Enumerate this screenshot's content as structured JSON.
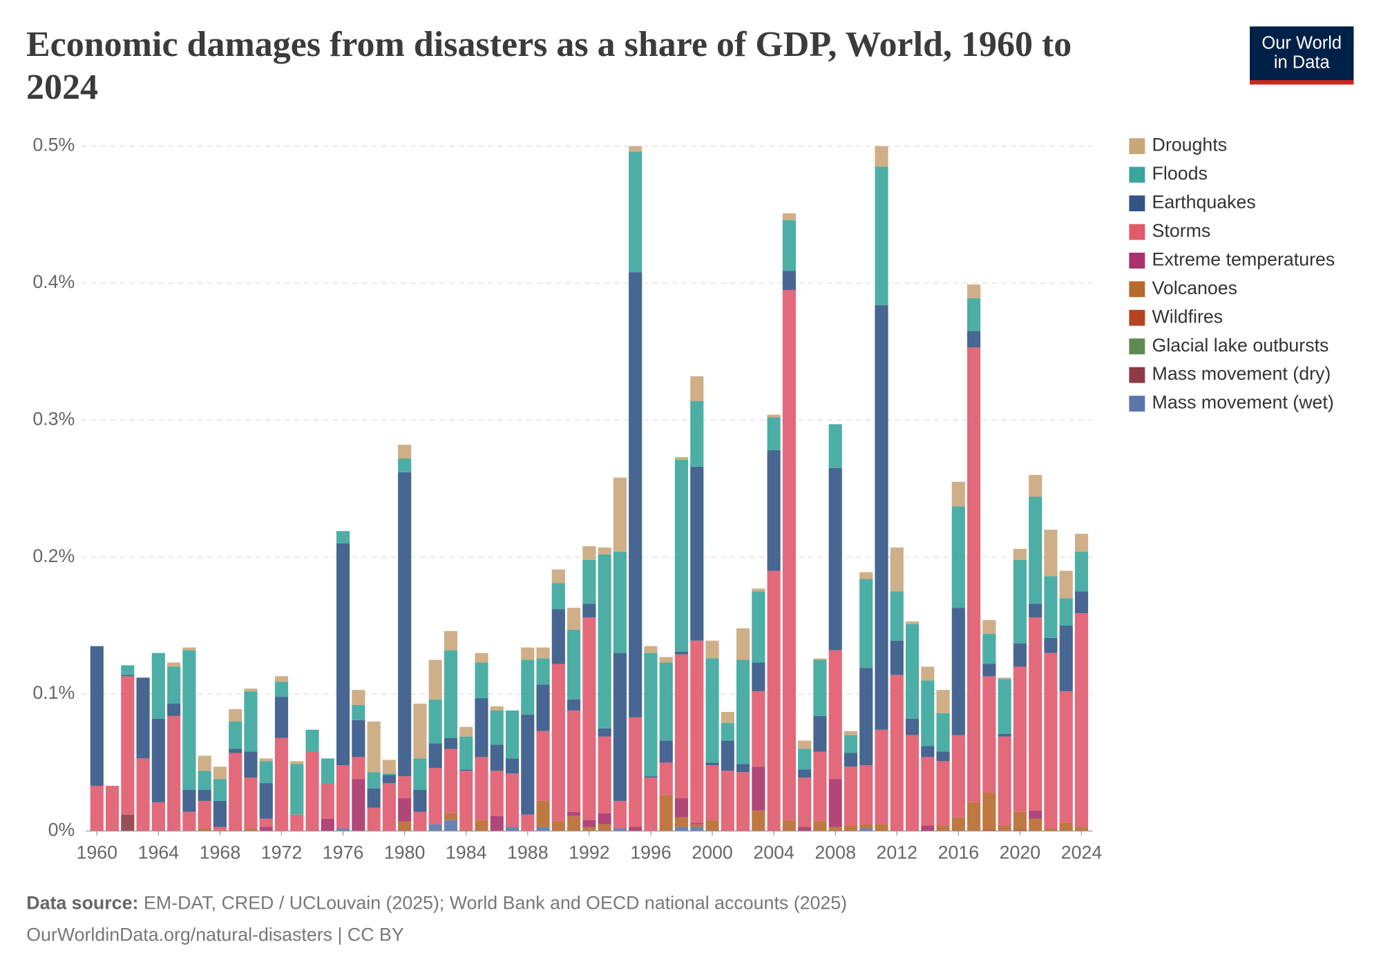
{
  "chart_data": {
    "type": "bar",
    "stacked": true,
    "title": "Economic damages from disasters as a share of GDP, World, 1960 to 2024",
    "x": [
      1960,
      1961,
      1962,
      1963,
      1964,
      1965,
      1966,
      1967,
      1968,
      1969,
      1970,
      1971,
      1972,
      1973,
      1974,
      1975,
      1976,
      1977,
      1978,
      1979,
      1980,
      1981,
      1982,
      1983,
      1984,
      1985,
      1986,
      1987,
      1988,
      1989,
      1990,
      1991,
      1992,
      1993,
      1994,
      1995,
      1996,
      1997,
      1998,
      1999,
      2000,
      2001,
      2002,
      2003,
      2004,
      2005,
      2006,
      2007,
      2008,
      2009,
      2010,
      2011,
      2012,
      2013,
      2014,
      2015,
      2016,
      2017,
      2018,
      2019,
      2020,
      2021,
      2022,
      2023,
      2024
    ],
    "xlim": [
      1959.5,
      2024.5
    ],
    "xticks": [
      1960,
      1964,
      1968,
      1972,
      1976,
      1980,
      1984,
      1988,
      1992,
      1996,
      2000,
      2004,
      2008,
      2012,
      2016,
      2020,
      2024
    ],
    "ylim": [
      0,
      0.5
    ],
    "yticks": [
      {
        "value": 0,
        "label": "0%"
      },
      {
        "value": 0.1,
        "label": "0.1%"
      },
      {
        "value": 0.2,
        "label": "0.2%"
      },
      {
        "value": 0.3,
        "label": "0.3%"
      },
      {
        "value": 0.4,
        "label": "0.4%"
      },
      {
        "value": 0.5,
        "label": "0.5%"
      }
    ],
    "grid": true,
    "legend": "right",
    "series": [
      {
        "name": "Droughts",
        "color": "#c9a67a",
        "values": [
          0,
          0,
          0,
          0,
          0,
          0.003,
          0.002,
          0.011,
          0.009,
          0.009,
          0.002,
          0.002,
          0.004,
          0.002,
          0,
          0,
          0,
          0.011,
          0.037,
          0.01,
          0.01,
          0.04,
          0.029,
          0.014,
          0.007,
          0.007,
          0.003,
          0,
          0.009,
          0.008,
          0.01,
          0.016,
          0.01,
          0.005,
          0.054,
          0.004,
          0.005,
          0.004,
          0.002,
          0.018,
          0.013,
          0.008,
          0.023,
          0.002,
          0.002,
          0.005,
          0.006,
          0.001,
          0,
          0.003,
          0.005,
          0.015,
          0.032,
          0.002,
          0.01,
          0.017,
          0.018,
          0.01,
          0.01,
          0.001,
          0.008,
          0.016,
          0.034,
          0.02,
          0.013
        ]
      },
      {
        "name": "Floods",
        "color": "#3aa59c",
        "values": [
          0,
          0,
          0.007,
          0,
          0.048,
          0.027,
          0.102,
          0.014,
          0.016,
          0.02,
          0.044,
          0.016,
          0.011,
          0.037,
          0.016,
          0.018,
          0.009,
          0.011,
          0.012,
          0.001,
          0.01,
          0.023,
          0.032,
          0.064,
          0.024,
          0.026,
          0.025,
          0.035,
          0.04,
          0.019,
          0.019,
          0.051,
          0.032,
          0.127,
          0.074,
          0.088,
          0.09,
          0.057,
          0.14,
          0.048,
          0.076,
          0.013,
          0.076,
          0.052,
          0.024,
          0.037,
          0.015,
          0.041,
          0.032,
          0.013,
          0.065,
          0.101,
          0.036,
          0.069,
          0.048,
          0.028,
          0.074,
          0.024,
          0.022,
          0.04,
          0.061,
          0.078,
          0.045,
          0.02,
          0.029
        ]
      },
      {
        "name": "Earthquakes",
        "color": "#335585",
        "values": [
          0.102,
          0,
          0.001,
          0.059,
          0.061,
          0.009,
          0.016,
          0.008,
          0.019,
          0.003,
          0.019,
          0.026,
          0.03,
          0,
          0,
          0,
          0.162,
          0.027,
          0.014,
          0.006,
          0.222,
          0.016,
          0.018,
          0.008,
          0.001,
          0.043,
          0.019,
          0.011,
          0.073,
          0.034,
          0.04,
          0.008,
          0.01,
          0.006,
          0.108,
          0.325,
          0.001,
          0.016,
          0.002,
          0.127,
          0.002,
          0.022,
          0.006,
          0.021,
          0.088,
          0.014,
          0.006,
          0.026,
          0.133,
          0.01,
          0.071,
          0.31,
          0.025,
          0.012,
          0.008,
          0.007,
          0.093,
          0.012,
          0.009,
          0.002,
          0.017,
          0.01,
          0.011,
          0.048,
          0.016
        ]
      },
      {
        "name": "Storms",
        "color": "#e05a6b",
        "values": [
          0.033,
          0.033,
          0.101,
          0.053,
          0.021,
          0.084,
          0.014,
          0.02,
          0.003,
          0.057,
          0.037,
          0.006,
          0.068,
          0.012,
          0.058,
          0.026,
          0.046,
          0.016,
          0.017,
          0.035,
          0.016,
          0.014,
          0.041,
          0.047,
          0.043,
          0.046,
          0.033,
          0.039,
          0.012,
          0.051,
          0.115,
          0.074,
          0.148,
          0.056,
          0.02,
          0.08,
          0.039,
          0.024,
          0.105,
          0.133,
          0.04,
          0.044,
          0.043,
          0.055,
          0.19,
          0.387,
          0.036,
          0.051,
          0.094,
          0.043,
          0.043,
          0.069,
          0.114,
          0.07,
          0.05,
          0.047,
          0.06,
          0.332,
          0.085,
          0.065,
          0.106,
          0.141,
          0.128,
          0.096,
          0.156
        ]
      },
      {
        "name": "Extreme temperatures",
        "color": "#a83269",
        "values": [
          0,
          0,
          0,
          0,
          0,
          0,
          0,
          0,
          0,
          0,
          0,
          0.003,
          0,
          0,
          0,
          0.009,
          0,
          0.038,
          0,
          0,
          0.017,
          0,
          0,
          0,
          0,
          0,
          0.011,
          0,
          0,
          0,
          0,
          0.003,
          0.005,
          0.008,
          0,
          0.003,
          0,
          0,
          0.014,
          0.001,
          0,
          0,
          0,
          0.032,
          0,
          0,
          0.003,
          0,
          0.035,
          0,
          0,
          0,
          0,
          0,
          0.004,
          0,
          0,
          0,
          0,
          0,
          0,
          0.006,
          0,
          0,
          0
        ]
      },
      {
        "name": "Volcanoes",
        "color": "#b8692e",
        "values": [
          0,
          0,
          0,
          0,
          0,
          0,
          0,
          0.002,
          0,
          0,
          0.002,
          0,
          0,
          0,
          0,
          0,
          0,
          0,
          0,
          0,
          0.007,
          0,
          0,
          0.005,
          0.001,
          0.008,
          0,
          0,
          0,
          0.019,
          0.007,
          0.011,
          0.003,
          0.005,
          0,
          0,
          0,
          0.026,
          0.007,
          0.002,
          0.008,
          0,
          0,
          0.015,
          0,
          0.008,
          0,
          0.007,
          0.003,
          0.004,
          0.003,
          0.005,
          0,
          0,
          0,
          0.004,
          0.01,
          0.021,
          0.027,
          0.004,
          0.013,
          0.009,
          0.002,
          0.006,
          0.003
        ]
      },
      {
        "name": "Wildfires",
        "color": "#b5431f",
        "values": [
          0,
          0,
          0,
          0,
          0,
          0,
          0,
          0,
          0,
          0,
          0,
          0,
          0,
          0,
          0,
          0,
          0,
          0,
          0,
          0,
          0,
          0,
          0,
          0,
          0,
          0,
          0,
          0,
          0,
          0,
          0,
          0,
          0,
          0,
          0,
          0,
          0,
          0,
          0,
          0,
          0,
          0,
          0,
          0,
          0,
          0,
          0,
          0,
          0,
          0,
          0,
          0,
          0,
          0,
          0,
          0,
          0,
          0,
          0.001,
          0,
          0.001,
          0,
          0,
          0,
          0
        ]
      },
      {
        "name": "Glacial lake outbursts",
        "color": "#5e8a52",
        "values": [
          0,
          0,
          0,
          0,
          0,
          0,
          0,
          0,
          0,
          0,
          0,
          0,
          0,
          0,
          0,
          0,
          0,
          0,
          0,
          0,
          0,
          0,
          0,
          0,
          0,
          0,
          0,
          0,
          0,
          0,
          0,
          0,
          0,
          0,
          0,
          0,
          0,
          0,
          0,
          0,
          0,
          0,
          0,
          0,
          0,
          0,
          0,
          0,
          0,
          0,
          0,
          0,
          0,
          0,
          0,
          0,
          0,
          0,
          0,
          0,
          0,
          0,
          0,
          0,
          0
        ]
      },
      {
        "name": "Mass movement (dry)",
        "color": "#8e3b44",
        "values": [
          0,
          0,
          0.012,
          0,
          0,
          0,
          0,
          0,
          0,
          0,
          0,
          0,
          0,
          0,
          0,
          0,
          0,
          0,
          0,
          0,
          0,
          0,
          0,
          0,
          0,
          0,
          0,
          0,
          0,
          0,
          0,
          0,
          0,
          0,
          0,
          0,
          0,
          0,
          0,
          0,
          0,
          0,
          0,
          0,
          0,
          0,
          0,
          0,
          0,
          0,
          0,
          0,
          0,
          0,
          0,
          0,
          0,
          0,
          0,
          0,
          0,
          0,
          0,
          0,
          0
        ]
      },
      {
        "name": "Mass movement (wet)",
        "color": "#5a77a8",
        "values": [
          0,
          0,
          0,
          0,
          0,
          0,
          0,
          0,
          0,
          0,
          0,
          0,
          0,
          0,
          0,
          0,
          0.002,
          0,
          0,
          0,
          0,
          0,
          0.005,
          0.008,
          0,
          0,
          0,
          0.003,
          0,
          0.003,
          0,
          0,
          0,
          0,
          0.002,
          0,
          0,
          0,
          0.003,
          0.003,
          0,
          0,
          0,
          0,
          0,
          0,
          0,
          0,
          0,
          0,
          0.002,
          0,
          0,
          0,
          0,
          0,
          0,
          0,
          0,
          0,
          0,
          0,
          0,
          0,
          0
        ]
      }
    ]
  },
  "header": {
    "logo": [
      "Our World",
      "in Data"
    ]
  },
  "footer": {
    "source_label": "Data source:",
    "source": "EM-DAT, CRED / UCLouvain (2025); World Bank and OECD national accounts (2025)",
    "url": "OurWorldinData.org/natural-disasters | CC BY"
  }
}
